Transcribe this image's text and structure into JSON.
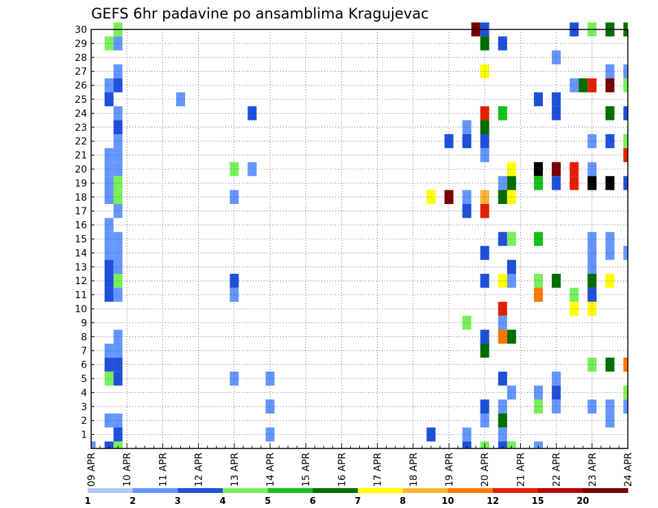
{
  "chart_data": {
    "type": "heatmap",
    "title": "GEFS 6hr padavine po ansamblima Kragujevac",
    "xlabel": "",
    "ylabel": "",
    "x_ticks": [
      "09 APR",
      "10 APR",
      "11 APR",
      "12 APR",
      "13 APR",
      "14 APR",
      "15 APR",
      "16 APR",
      "17 APR",
      "18 APR",
      "19 APR",
      "20 APR",
      "21 APR",
      "22 APR",
      "23 APR",
      "24 APR"
    ],
    "y_ticks": [
      "1",
      "2",
      "3",
      "4",
      "5",
      "6",
      "7",
      "8",
      "9",
      "10",
      "11",
      "12",
      "13",
      "14",
      "15",
      "16",
      "17",
      "18",
      "19",
      "20",
      "21",
      "22",
      "23",
      "24",
      "25",
      "26",
      "27",
      "28",
      "29",
      "30"
    ],
    "x_range": [
      "09 APR 00Z",
      "24 APR 06Z"
    ],
    "y_range": [
      0,
      30
    ],
    "grid": true,
    "colorbar": {
      "labels": [
        "1",
        "2",
        "3",
        "4",
        "5",
        "6",
        "7",
        "8",
        "10",
        "12",
        "15",
        "20"
      ],
      "colors": [
        "#b4c8f5",
        "#6496ff",
        "#1e50dc",
        "#78f05a",
        "#14c314",
        "#006e00",
        "#ffff00",
        "#ffb432",
        "#ff7800",
        "#e61e00",
        "#b40000",
        "#780000"
      ]
    },
    "cells": [
      [
        3,
        30,
        3
      ],
      [
        43,
        30,
        11
      ],
      [
        44,
        30,
        2
      ],
      [
        54,
        30,
        2
      ],
      [
        56,
        30,
        3
      ],
      [
        58,
        30,
        5
      ],
      [
        60,
        30,
        5
      ],
      [
        80,
        30,
        9
      ],
      [
        84,
        30,
        1
      ],
      [
        86,
        30,
        2
      ],
      [
        106,
        30,
        3
      ],
      [
        108,
        30,
        2
      ],
      [
        110,
        30,
        1
      ],
      [
        112,
        30,
        1
      ],
      [
        114,
        30,
        7
      ],
      [
        116,
        30,
        5
      ],
      [
        2,
        29,
        3
      ],
      [
        3,
        29,
        1
      ],
      [
        44,
        29,
        5
      ],
      [
        46,
        29,
        2
      ],
      [
        104,
        29,
        7
      ],
      [
        106,
        29,
        6
      ],
      [
        108,
        29,
        2
      ],
      [
        52,
        28,
        1
      ],
      [
        70,
        28,
        1
      ],
      [
        72,
        28,
        6
      ],
      [
        74,
        28,
        2
      ],
      [
        76,
        28,
        2
      ],
      [
        78,
        28,
        12
      ],
      [
        79,
        28,
        9
      ],
      [
        80,
        28,
        3
      ],
      [
        82,
        28,
        1
      ],
      [
        84,
        28,
        1
      ],
      [
        86,
        28,
        6
      ],
      [
        88,
        28,
        2
      ],
      [
        3,
        27,
        1
      ],
      [
        44,
        27,
        6
      ],
      [
        58,
        27,
        1
      ],
      [
        60,
        27,
        1
      ],
      [
        76,
        27,
        7
      ],
      [
        77,
        27,
        3
      ],
      [
        78,
        27,
        1
      ],
      [
        80,
        27,
        5
      ],
      [
        82,
        27,
        2
      ],
      [
        84,
        27,
        5
      ],
      [
        86,
        27,
        6
      ],
      [
        87,
        27,
        7
      ],
      [
        88,
        27,
        2
      ],
      [
        90,
        27,
        2
      ],
      [
        92,
        27,
        2
      ],
      [
        108,
        27,
        1
      ],
      [
        110,
        27,
        3
      ],
      [
        2,
        26,
        1
      ],
      [
        3,
        26,
        2
      ],
      [
        54,
        26,
        1
      ],
      [
        55,
        26,
        5
      ],
      [
        56,
        26,
        9
      ],
      [
        58,
        26,
        11
      ],
      [
        60,
        26,
        3
      ],
      [
        62,
        26,
        1
      ],
      [
        76,
        26,
        3
      ],
      [
        77,
        26,
        5
      ],
      [
        78,
        26,
        2
      ],
      [
        100,
        26,
        9
      ],
      [
        102,
        26,
        2
      ],
      [
        104,
        26,
        1
      ],
      [
        106,
        26,
        9
      ],
      [
        108,
        26,
        9
      ],
      [
        110,
        26,
        7
      ],
      [
        112,
        26,
        11
      ],
      [
        114,
        26,
        12
      ],
      [
        116,
        26,
        4
      ],
      [
        2,
        25,
        2
      ],
      [
        10,
        25,
        1
      ],
      [
        50,
        25,
        2
      ],
      [
        52,
        25,
        2
      ],
      [
        68,
        25,
        1
      ],
      [
        70,
        25,
        3
      ],
      [
        74,
        25,
        3
      ],
      [
        108,
        25,
        2
      ],
      [
        110,
        25,
        2
      ],
      [
        3,
        24,
        1
      ],
      [
        18,
        24,
        2
      ],
      [
        44,
        24,
        9
      ],
      [
        46,
        24,
        4
      ],
      [
        52,
        24,
        2
      ],
      [
        58,
        24,
        5
      ],
      [
        60,
        24,
        2
      ],
      [
        62,
        24,
        12
      ],
      [
        64,
        24,
        12
      ],
      [
        66,
        24,
        5
      ],
      [
        68,
        24,
        6
      ],
      [
        70,
        24,
        2
      ],
      [
        76,
        24,
        6
      ],
      [
        82,
        24,
        1
      ],
      [
        84,
        24,
        1
      ],
      [
        88,
        24,
        1
      ],
      [
        3,
        23,
        2
      ],
      [
        42,
        23,
        1
      ],
      [
        44,
        23,
        5
      ],
      [
        68,
        23,
        1
      ],
      [
        74,
        23,
        1
      ],
      [
        3,
        22,
        1
      ],
      [
        40,
        22,
        2
      ],
      [
        42,
        22,
        2
      ],
      [
        44,
        22,
        2
      ],
      [
        56,
        22,
        1
      ],
      [
        58,
        22,
        2
      ],
      [
        60,
        22,
        3
      ],
      [
        62,
        22,
        3
      ],
      [
        64,
        22,
        1
      ],
      [
        66,
        22,
        5
      ],
      [
        68,
        22,
        7
      ],
      [
        70,
        22,
        1
      ],
      [
        74,
        22,
        1
      ],
      [
        78,
        22,
        1
      ],
      [
        80,
        22,
        3
      ],
      [
        82,
        22,
        1
      ],
      [
        110,
        22,
        1
      ],
      [
        -4,
        21,
        1
      ],
      [
        2,
        21,
        1
      ],
      [
        3,
        21,
        1
      ],
      [
        44,
        21,
        1
      ],
      [
        60,
        21,
        9
      ],
      [
        62,
        21,
        3
      ],
      [
        66,
        21,
        3
      ],
      [
        2,
        20,
        1
      ],
      [
        3,
        20,
        1
      ],
      [
        16,
        20,
        3
      ],
      [
        18,
        20,
        1
      ],
      [
        47,
        20,
        6
      ],
      [
        50,
        20,
        12
      ],
      [
        52,
        20,
        11
      ],
      [
        54,
        20,
        9
      ],
      [
        56,
        20,
        1
      ],
      [
        86,
        20,
        1
      ],
      [
        98,
        20,
        1
      ],
      [
        110,
        20,
        2
      ],
      [
        2,
        19,
        1
      ],
      [
        3,
        19,
        3
      ],
      [
        46,
        19,
        1
      ],
      [
        47,
        19,
        5
      ],
      [
        50,
        19,
        4
      ],
      [
        52,
        19,
        2
      ],
      [
        54,
        19,
        9
      ],
      [
        56,
        19,
        12
      ],
      [
        58,
        19,
        12
      ],
      [
        60,
        19,
        2
      ],
      [
        62,
        19,
        1
      ],
      [
        64,
        19,
        4
      ],
      [
        66,
        19,
        1
      ],
      [
        86,
        19,
        1
      ],
      [
        120,
        19,
        1
      ],
      [
        -2,
        18,
        1
      ],
      [
        2,
        18,
        1
      ],
      [
        3,
        18,
        3
      ],
      [
        16,
        18,
        1
      ],
      [
        38,
        18,
        6
      ],
      [
        40,
        18,
        11
      ],
      [
        42,
        18,
        1
      ],
      [
        44,
        18,
        7
      ],
      [
        46,
        18,
        5
      ],
      [
        47,
        18,
        6
      ],
      [
        66,
        18,
        1
      ],
      [
        68,
        18,
        1
      ],
      [
        70,
        18,
        1
      ],
      [
        72,
        18,
        1
      ],
      [
        76,
        18,
        1
      ],
      [
        78,
        18,
        2
      ],
      [
        106,
        18,
        3
      ],
      [
        3,
        17,
        1
      ],
      [
        42,
        17,
        2
      ],
      [
        44,
        17,
        9
      ],
      [
        86,
        17,
        1
      ],
      [
        118,
        17,
        1
      ],
      [
        2,
        16,
        1
      ],
      [
        84,
        16,
        1
      ],
      [
        86,
        16,
        1
      ],
      [
        88,
        16,
        1
      ],
      [
        88,
        16,
        1
      ],
      [
        72,
        16,
        1
      ],
      [
        2,
        15,
        1
      ],
      [
        3,
        15,
        1
      ],
      [
        46,
        15,
        2
      ],
      [
        47,
        15,
        3
      ],
      [
        50,
        15,
        4
      ],
      [
        56,
        15,
        1
      ],
      [
        58,
        15,
        1
      ],
      [
        72,
        15,
        1
      ],
      [
        84,
        15,
        3
      ],
      [
        2,
        14,
        1
      ],
      [
        3,
        14,
        1
      ],
      [
        44,
        14,
        2
      ],
      [
        56,
        14,
        1
      ],
      [
        58,
        14,
        1
      ],
      [
        60,
        14,
        1
      ],
      [
        68,
        14,
        8
      ],
      [
        70,
        14,
        7
      ],
      [
        72,
        14,
        1
      ],
      [
        76,
        14,
        3
      ],
      [
        78,
        14,
        1
      ],
      [
        80,
        14,
        9
      ],
      [
        82,
        14,
        11
      ],
      [
        84,
        14,
        6
      ],
      [
        86,
        14,
        1
      ],
      [
        92,
        14,
        1
      ],
      [
        94,
        14,
        2
      ],
      [
        100,
        14,
        1
      ],
      [
        102,
        14,
        1
      ],
      [
        2,
        13,
        2
      ],
      [
        3,
        13,
        1
      ],
      [
        47,
        13,
        2
      ],
      [
        56,
        13,
        1
      ],
      [
        62,
        13,
        6
      ],
      [
        86,
        13,
        2
      ],
      [
        106,
        13,
        1
      ],
      [
        116,
        13,
        1
      ],
      [
        118,
        13,
        9
      ],
      [
        120,
        13,
        2
      ],
      [
        2,
        12,
        2
      ],
      [
        3,
        12,
        3
      ],
      [
        16,
        12,
        2
      ],
      [
        44,
        12,
        2
      ],
      [
        46,
        12,
        6
      ],
      [
        47,
        12,
        1
      ],
      [
        50,
        12,
        3
      ],
      [
        52,
        12,
        5
      ],
      [
        56,
        12,
        5
      ],
      [
        58,
        12,
        6
      ],
      [
        102,
        12,
        1
      ],
      [
        104,
        12,
        2
      ],
      [
        2,
        11,
        2
      ],
      [
        3,
        11,
        1
      ],
      [
        16,
        11,
        1
      ],
      [
        50,
        11,
        8
      ],
      [
        54,
        11,
        3
      ],
      [
        56,
        11,
        2
      ],
      [
        66,
        11,
        1
      ],
      [
        80,
        11,
        2
      ],
      [
        82,
        11,
        2
      ],
      [
        84,
        11,
        2
      ],
      [
        86,
        11,
        1
      ],
      [
        88,
        11,
        1
      ],
      [
        90,
        11,
        1
      ],
      [
        100,
        11,
        1
      ],
      [
        106,
        11,
        1
      ],
      [
        110,
        11,
        2
      ],
      [
        112,
        11,
        2
      ],
      [
        116,
        11,
        2
      ],
      [
        46,
        10,
        9
      ],
      [
        54,
        10,
        6
      ],
      [
        56,
        10,
        6
      ],
      [
        62,
        10,
        5
      ],
      [
        92,
        10,
        2
      ],
      [
        114,
        10,
        1
      ],
      [
        116,
        10,
        1
      ],
      [
        42,
        9,
        3
      ],
      [
        46,
        9,
        1
      ],
      [
        66,
        9,
        5
      ],
      [
        68,
        9,
        8
      ],
      [
        70,
        9,
        2
      ],
      [
        72,
        9,
        1
      ],
      [
        74,
        9,
        2
      ],
      [
        78,
        9,
        1
      ],
      [
        80,
        9,
        1
      ],
      [
        88,
        9,
        1
      ],
      [
        90,
        9,
        1
      ],
      [
        96,
        9,
        1
      ],
      [
        102,
        9,
        2
      ],
      [
        104,
        9,
        1
      ],
      [
        108,
        9,
        5
      ],
      [
        110,
        9,
        1
      ],
      [
        3,
        8,
        1
      ],
      [
        44,
        8,
        2
      ],
      [
        46,
        8,
        8
      ],
      [
        47,
        8,
        5
      ],
      [
        104,
        8,
        1
      ],
      [
        2,
        7,
        1
      ],
      [
        3,
        7,
        1
      ],
      [
        44,
        7,
        5
      ],
      [
        88,
        7,
        1
      ],
      [
        96,
        7,
        2
      ],
      [
        98,
        7,
        2
      ],
      [
        100,
        7,
        2
      ],
      [
        102,
        7,
        3
      ],
      [
        104,
        7,
        8
      ],
      [
        106,
        7,
        6
      ],
      [
        108,
        7,
        1
      ],
      [
        2,
        6,
        2
      ],
      [
        3,
        6,
        2
      ],
      [
        56,
        6,
        3
      ],
      [
        58,
        6,
        5
      ],
      [
        60,
        6,
        8
      ],
      [
        62,
        6,
        4
      ],
      [
        64,
        6,
        5
      ],
      [
        106,
        6,
        1
      ],
      [
        110,
        6,
        3
      ],
      [
        2,
        5,
        3
      ],
      [
        3,
        5,
        2
      ],
      [
        16,
        5,
        1
      ],
      [
        20,
        5,
        1
      ],
      [
        46,
        5,
        2
      ],
      [
        52,
        5,
        1
      ],
      [
        114,
        5,
        1
      ],
      [
        116,
        5,
        3
      ],
      [
        118,
        5,
        3
      ],
      [
        47,
        4,
        1
      ],
      [
        50,
        4,
        1
      ],
      [
        52,
        4,
        2
      ],
      [
        60,
        4,
        3
      ],
      [
        62,
        4,
        11
      ],
      [
        64,
        4,
        3
      ],
      [
        104,
        4,
        1
      ],
      [
        20,
        3,
        1
      ],
      [
        44,
        3,
        2
      ],
      [
        46,
        3,
        1
      ],
      [
        50,
        3,
        3
      ],
      [
        52,
        3,
        1
      ],
      [
        56,
        3,
        1
      ],
      [
        58,
        3,
        1
      ],
      [
        60,
        3,
        1
      ],
      [
        64,
        3,
        1
      ],
      [
        86,
        3,
        1
      ],
      [
        88,
        3,
        8
      ],
      [
        90,
        3,
        5
      ],
      [
        92,
        3,
        1
      ],
      [
        94,
        3,
        3
      ],
      [
        98,
        3,
        1
      ],
      [
        100,
        3,
        1
      ],
      [
        104,
        3,
        2
      ],
      [
        2,
        2,
        1
      ],
      [
        3,
        2,
        1
      ],
      [
        44,
        2,
        1
      ],
      [
        46,
        2,
        5
      ],
      [
        58,
        2,
        1
      ],
      [
        62,
        2,
        1
      ],
      [
        64,
        2,
        5
      ],
      [
        66,
        2,
        1
      ],
      [
        88,
        2,
        1
      ],
      [
        110,
        2,
        2
      ],
      [
        112,
        2,
        6
      ],
      [
        3,
        1,
        2
      ],
      [
        20,
        1,
        1
      ],
      [
        38,
        1,
        2
      ],
      [
        42,
        1,
        1
      ],
      [
        46,
        1,
        1
      ],
      [
        66,
        1,
        1
      ],
      [
        70,
        1,
        1
      ],
      [
        -2,
        0,
        1
      ],
      [
        0,
        0,
        1
      ],
      [
        2,
        0,
        2
      ],
      [
        3,
        0,
        3
      ],
      [
        42,
        0,
        2
      ],
      [
        44,
        0,
        3
      ],
      [
        46,
        0,
        2
      ],
      [
        47,
        0,
        3
      ],
      [
        50,
        0,
        1
      ],
      [
        80,
        0,
        1
      ],
      [
        82,
        0,
        3
      ],
      [
        84,
        0,
        2
      ],
      [
        90,
        0,
        1
      ],
      [
        112,
        0,
        3
      ],
      [
        114,
        0,
        1
      ],
      [
        118,
        0,
        2
      ],
      [
        120,
        0,
        1
      ]
    ]
  }
}
